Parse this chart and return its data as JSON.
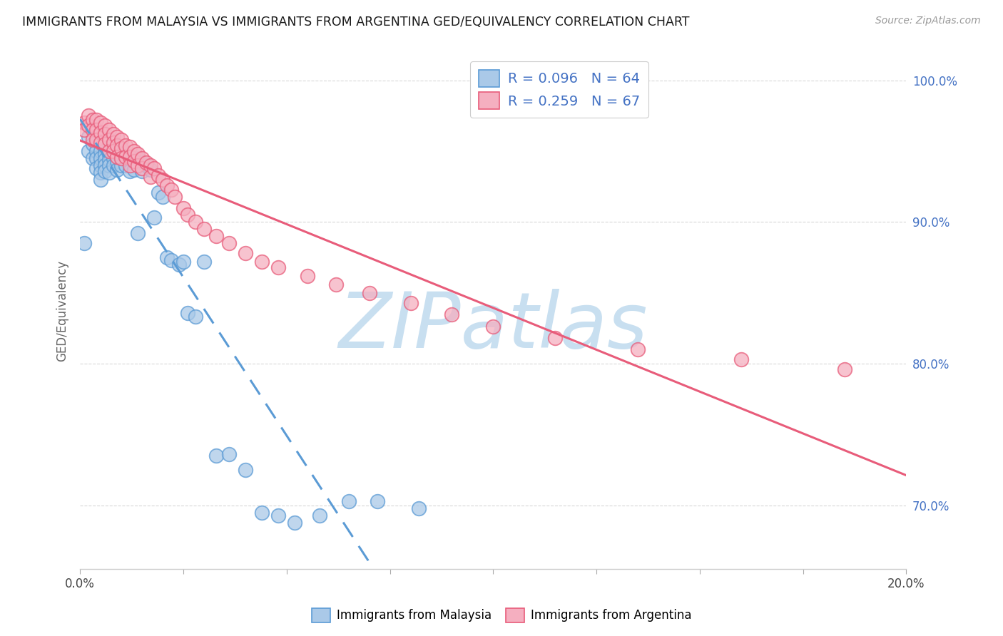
{
  "title": "IMMIGRANTS FROM MALAYSIA VS IMMIGRANTS FROM ARGENTINA GED/EQUIVALENCY CORRELATION CHART",
  "source": "Source: ZipAtlas.com",
  "ylabel": "GED/Equivalency",
  "legend_malaysia": "Immigrants from Malaysia",
  "legend_argentina": "Immigrants from Argentina",
  "R_malaysia": 0.096,
  "N_malaysia": 64,
  "R_argentina": 0.259,
  "N_argentina": 67,
  "color_malaysia": "#aac9e8",
  "color_argentina": "#f5afc0",
  "trendline_malaysia_color": "#5b9bd5",
  "trendline_argentina_color": "#e85c7a",
  "watermark_zip": "ZIP",
  "watermark_atlas": "atlas",
  "watermark_color_zip": "#c8dff0",
  "watermark_color_atlas": "#c8dff0",
  "malaysia_x": [
    0.001,
    0.002,
    0.002,
    0.003,
    0.003,
    0.004,
    0.004,
    0.004,
    0.005,
    0.005,
    0.005,
    0.005,
    0.005,
    0.006,
    0.006,
    0.006,
    0.006,
    0.006,
    0.007,
    0.007,
    0.007,
    0.007,
    0.007,
    0.008,
    0.008,
    0.008,
    0.009,
    0.009,
    0.009,
    0.01,
    0.01,
    0.01,
    0.011,
    0.011,
    0.012,
    0.012,
    0.013,
    0.013,
    0.014,
    0.014,
    0.015,
    0.015,
    0.016,
    0.017,
    0.018,
    0.019,
    0.02,
    0.021,
    0.022,
    0.024,
    0.025,
    0.026,
    0.028,
    0.03,
    0.033,
    0.036,
    0.04,
    0.044,
    0.048,
    0.052,
    0.058,
    0.065,
    0.072,
    0.082
  ],
  "malaysia_y": [
    0.885,
    0.96,
    0.95,
    0.955,
    0.945,
    0.95,
    0.945,
    0.938,
    0.95,
    0.945,
    0.94,
    0.935,
    0.93,
    0.952,
    0.948,
    0.944,
    0.94,
    0.936,
    0.953,
    0.948,
    0.944,
    0.94,
    0.935,
    0.95,
    0.945,
    0.94,
    0.948,
    0.943,
    0.937,
    0.952,
    0.947,
    0.94,
    0.946,
    0.94,
    0.942,
    0.936,
    0.943,
    0.937,
    0.945,
    0.892,
    0.942,
    0.936,
    0.94,
    0.937,
    0.903,
    0.921,
    0.918,
    0.875,
    0.873,
    0.87,
    0.872,
    0.836,
    0.833,
    0.872,
    0.735,
    0.736,
    0.725,
    0.695,
    0.693,
    0.688,
    0.693,
    0.703,
    0.703,
    0.698
  ],
  "argentina_x": [
    0.001,
    0.001,
    0.002,
    0.002,
    0.003,
    0.003,
    0.003,
    0.004,
    0.004,
    0.004,
    0.005,
    0.005,
    0.005,
    0.006,
    0.006,
    0.006,
    0.007,
    0.007,
    0.007,
    0.008,
    0.008,
    0.008,
    0.009,
    0.009,
    0.009,
    0.01,
    0.01,
    0.01,
    0.011,
    0.011,
    0.012,
    0.012,
    0.012,
    0.013,
    0.013,
    0.014,
    0.014,
    0.015,
    0.015,
    0.016,
    0.017,
    0.017,
    0.018,
    0.019,
    0.02,
    0.021,
    0.022,
    0.023,
    0.025,
    0.026,
    0.028,
    0.03,
    0.033,
    0.036,
    0.04,
    0.044,
    0.048,
    0.055,
    0.062,
    0.07,
    0.08,
    0.09,
    0.1,
    0.115,
    0.135,
    0.16,
    0.185
  ],
  "argentina_y": [
    0.97,
    0.965,
    0.975,
    0.968,
    0.972,
    0.965,
    0.958,
    0.972,
    0.965,
    0.958,
    0.97,
    0.963,
    0.956,
    0.968,
    0.962,
    0.955,
    0.965,
    0.958,
    0.95,
    0.962,
    0.956,
    0.95,
    0.96,
    0.954,
    0.946,
    0.958,
    0.952,
    0.945,
    0.954,
    0.946,
    0.953,
    0.946,
    0.94,
    0.95,
    0.943,
    0.948,
    0.94,
    0.945,
    0.938,
    0.942,
    0.94,
    0.932,
    0.938,
    0.933,
    0.93,
    0.926,
    0.923,
    0.918,
    0.91,
    0.905,
    0.9,
    0.895,
    0.89,
    0.885,
    0.878,
    0.872,
    0.868,
    0.862,
    0.856,
    0.85,
    0.843,
    0.835,
    0.826,
    0.818,
    0.81,
    0.803,
    0.796
  ],
  "xmin": 0.0,
  "xmax": 0.2,
  "ymin": 0.655,
  "ymax": 1.02,
  "yticks": [
    0.7,
    0.8,
    0.9,
    1.0
  ],
  "ytick_labels": [
    "70.0%",
    "80.0%",
    "90.0%",
    "100.0%"
  ],
  "background_color": "#ffffff",
  "grid_color": "#d8d8d8",
  "axis_label_color": "#4472c4"
}
